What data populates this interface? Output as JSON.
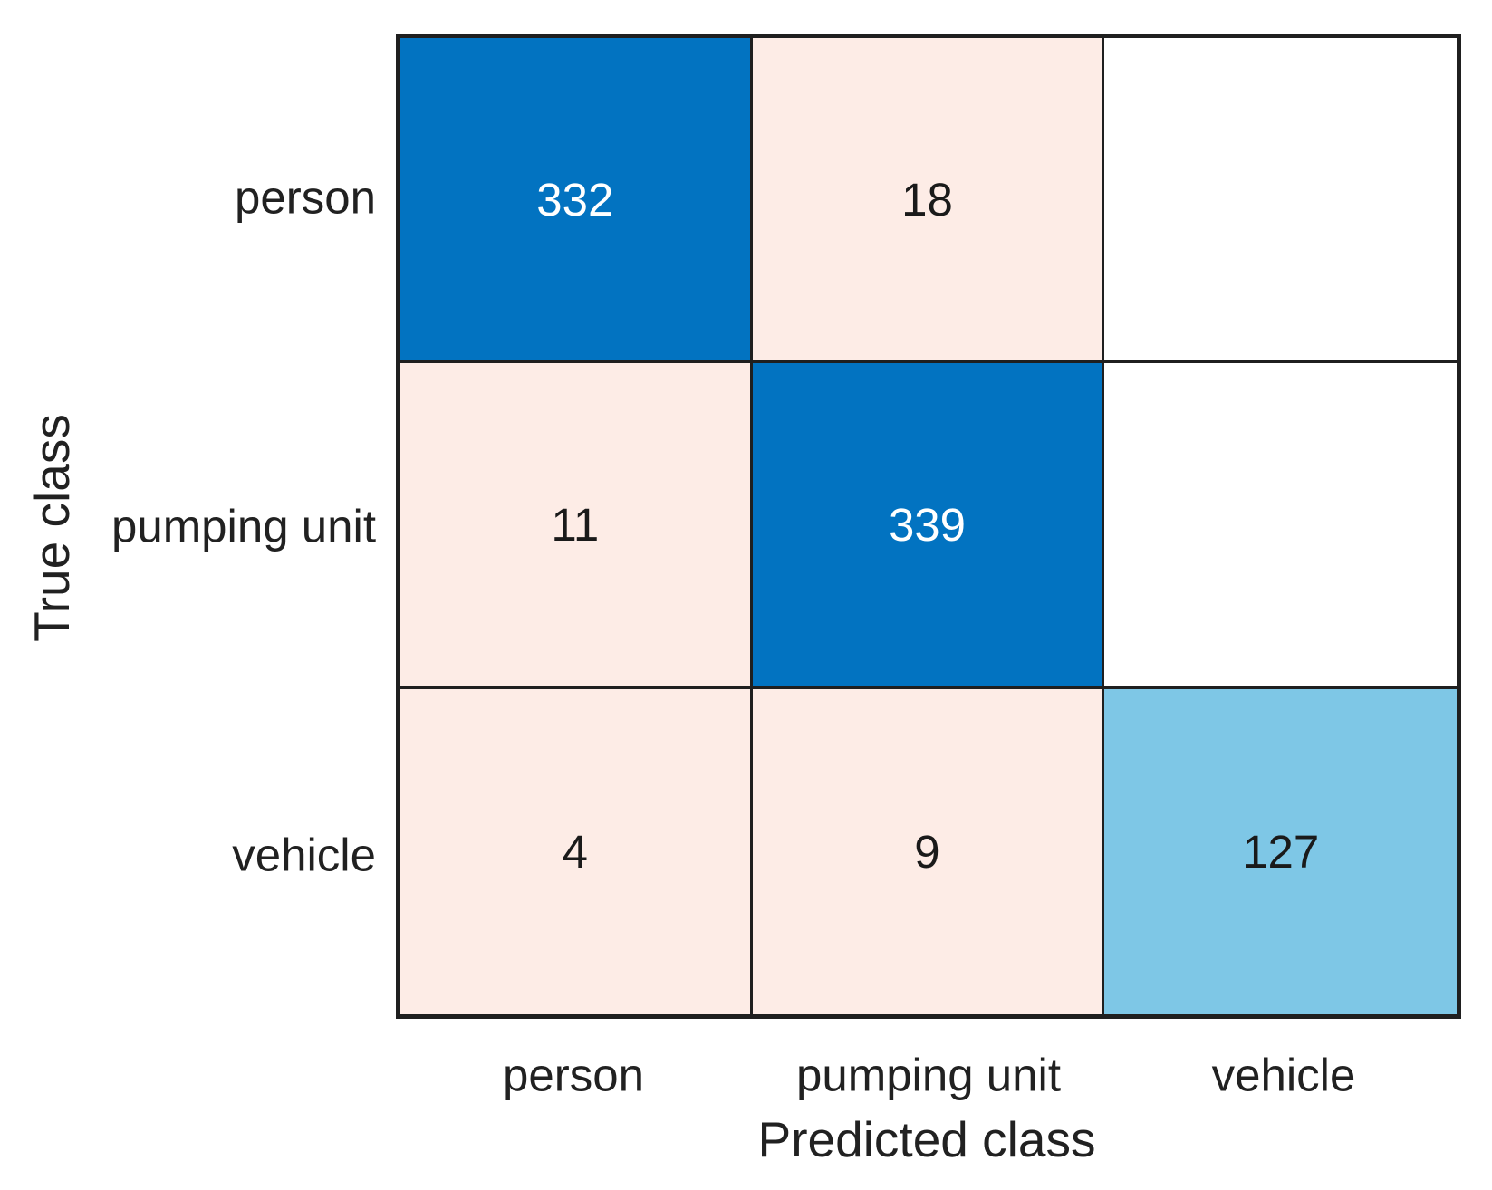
{
  "chart_data": {
    "type": "heatmap",
    "subtype": "confusion-matrix",
    "xlabel": "Predicted class",
    "ylabel": "True class",
    "row_labels": [
      "person",
      "pumping unit",
      "vehicle"
    ],
    "col_labels": [
      "person",
      "pumping unit",
      "vehicle"
    ],
    "matrix": [
      [
        332,
        18,
        null
      ],
      [
        11,
        339,
        null
      ],
      [
        4,
        9,
        127
      ]
    ],
    "cell_display": [
      [
        "332",
        "18",
        ""
      ],
      [
        "11",
        "339",
        ""
      ],
      [
        "4",
        "9",
        "127"
      ]
    ],
    "cell_colors": [
      [
        "#0273c1",
        "#fdece6",
        "#ffffff"
      ],
      [
        "#fdece6",
        "#0273c1",
        "#ffffff"
      ],
      [
        "#fdece6",
        "#fdece6",
        "#7ec7e6"
      ]
    ],
    "colors": {
      "diagonal_high": "#0273c1",
      "diagonal_low": "#7ec7e6",
      "off_diagonal": "#fdece6",
      "empty_cell": "#ffffff",
      "grid_line": "#1f1f1f",
      "text_on_dark": "#ffffff",
      "text_on_light": "#1a1a1a",
      "label_text": "#212121"
    },
    "layout": {
      "grid": "3x3",
      "legend": "none",
      "colorbar": "none"
    }
  }
}
